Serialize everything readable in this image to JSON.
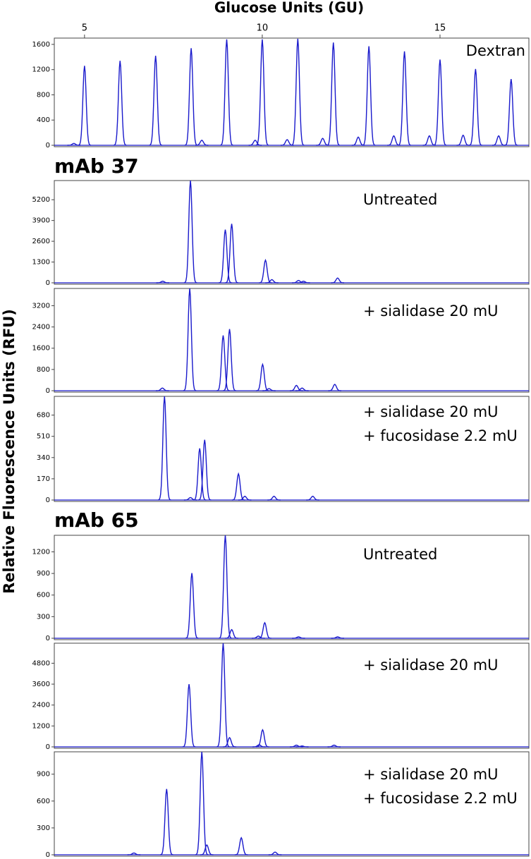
{
  "x_label": "Glucose Units (GU)",
  "y_label": "Relative Fluorescence Units (RFU)",
  "headings": [
    "mAb 37",
    "mAb 65"
  ],
  "chart_data": [
    {
      "type": "line",
      "label": [
        "Dextran"
      ],
      "color": "#1a1acc",
      "xlim": [
        4.15,
        17.5
      ],
      "xticks": [
        5,
        10,
        15
      ],
      "ylim": [
        0,
        1700
      ],
      "yticks": [
        0,
        400,
        800,
        1200,
        1600
      ],
      "x": [
        4.7,
        5.0,
        6.0,
        7.0,
        8.0,
        8.3,
        9.0,
        9.8,
        10.0,
        10.7,
        11.0,
        11.7,
        12.0,
        12.7,
        13.0,
        13.7,
        14.0,
        14.7,
        15.0,
        15.65,
        16.0,
        16.65,
        17.0
      ],
      "values": [
        30,
        1260,
        1340,
        1420,
        1540,
        80,
        1680,
        80,
        1680,
        90,
        1690,
        110,
        1630,
        130,
        1570,
        150,
        1490,
        150,
        1360,
        160,
        1210,
        150,
        1050
      ]
    },
    {
      "type": "line",
      "label": [
        "Untreated"
      ],
      "color": "#1a1acc",
      "xlim": [
        4.15,
        17.5
      ],
      "ylim": [
        0,
        6400
      ],
      "yticks": [
        0,
        1300,
        2600,
        3900,
        5200
      ],
      "x": [
        7.2,
        7.98,
        8.96,
        9.14,
        10.09,
        10.27,
        11.02,
        11.16,
        12.12
      ],
      "values": [
        100,
        6400,
        3330,
        3690,
        1420,
        200,
        150,
        100,
        300
      ]
    },
    {
      "type": "line",
      "label": [
        "+ sialidase 20 mU"
      ],
      "color": "#1a1acc",
      "xlim": [
        4.15,
        17.5
      ],
      "ylim": [
        0,
        3850
      ],
      "yticks": [
        0,
        800,
        1600,
        2400,
        3200
      ],
      "x": [
        7.19,
        7.96,
        8.9,
        9.08,
        10.01,
        10.19,
        10.96,
        11.12,
        12.04
      ],
      "values": [
        100,
        3850,
        2080,
        2320,
        990,
        80,
        200,
        100,
        240
      ]
    },
    {
      "type": "line",
      "label": [
        "+ sialidase 20 mU",
        "+ fucosidase 2.2 mU"
      ],
      "color": "#1a1acc",
      "xlim": [
        4.15,
        17.5
      ],
      "ylim": [
        0,
        830
      ],
      "yticks": [
        0,
        170,
        340,
        510,
        680
      ],
      "x": [
        7.25,
        7.98,
        8.24,
        8.38,
        9.33,
        9.51,
        10.33,
        11.42
      ],
      "values": [
        830,
        20,
        414,
        482,
        210,
        30,
        30,
        30
      ]
    },
    {
      "type": "line",
      "label": [
        "Untreated"
      ],
      "color": "#1a1acc",
      "xlim": [
        4.15,
        17.5
      ],
      "ylim": [
        0,
        1430
      ],
      "yticks": [
        0,
        300,
        600,
        900,
        1200
      ],
      "x": [
        8.02,
        8.96,
        9.14,
        9.89,
        10.07,
        11.02,
        12.12
      ],
      "values": [
        905,
        1430,
        120,
        30,
        216,
        20,
        20
      ]
    },
    {
      "type": "line",
      "label": [
        "+ sialidase 20 mU"
      ],
      "color": "#1a1acc",
      "xlim": [
        4.15,
        17.5
      ],
      "ylim": [
        0,
        5950
      ],
      "yticks": [
        0,
        1200,
        2400,
        3600,
        4800
      ],
      "x": [
        7.94,
        8.9,
        9.08,
        9.91,
        10.01,
        10.96,
        11.12,
        12.02
      ],
      "values": [
        3600,
        5950,
        530,
        120,
        980,
        100,
        50,
        100
      ]
    },
    {
      "type": "line",
      "label": [
        "+ sialidase 20 mU",
        "+ fucosidase 2.2 mU"
      ],
      "color": "#1a1acc",
      "xlim": [
        4.15,
        17.5
      ],
      "ylim": [
        0,
        1150
      ],
      "yticks": [
        0,
        300,
        600,
        900
      ],
      "x": [
        6.39,
        7.31,
        8.3,
        8.44,
        9.41,
        10.36
      ],
      "values": [
        20,
        735,
        1150,
        110,
        190,
        30
      ]
    }
  ]
}
